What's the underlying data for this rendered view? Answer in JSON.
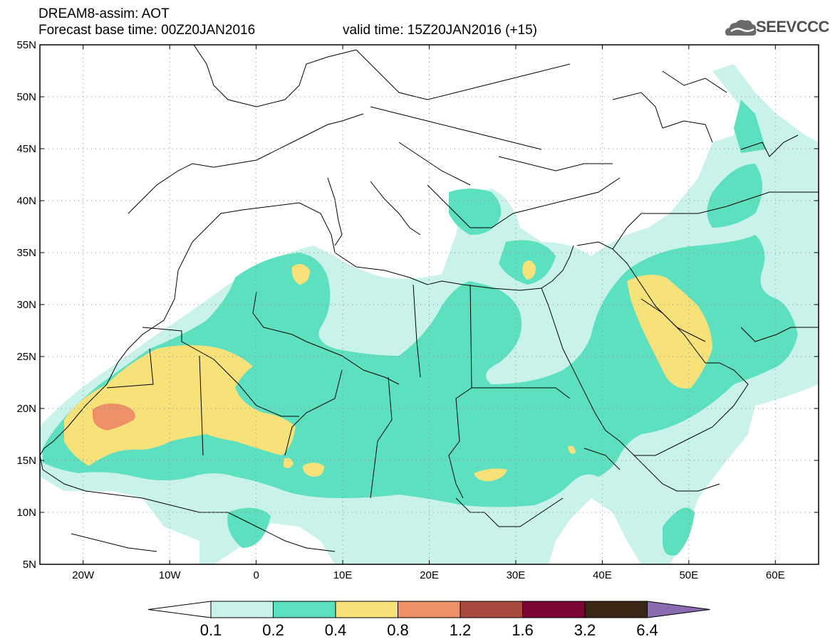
{
  "header": {
    "line1": "DREAM8-assim: AOT",
    "line2": "Forecast base time: 00Z20JAN2016",
    "line3": "valid time: 15Z20JAN2016 (+15)"
  },
  "logo": {
    "text": "SEEVCCC",
    "icon": "cloud-icon"
  },
  "map": {
    "lat_range": [
      5,
      55
    ],
    "lon_range": [
      -25,
      65
    ],
    "lat_labels": [
      "55N",
      "50N",
      "45N",
      "40N",
      "35N",
      "30N",
      "25N",
      "20N",
      "15N",
      "10N",
      "5N"
    ],
    "lat_values": [
      55,
      50,
      45,
      40,
      35,
      30,
      25,
      20,
      15,
      10,
      5
    ],
    "lon_labels": [
      "20W",
      "10W",
      "0",
      "10E",
      "20E",
      "30E",
      "40E",
      "50E",
      "60E"
    ],
    "lon_values": [
      -20,
      -10,
      0,
      10,
      20,
      30,
      40,
      50,
      60
    ],
    "grid": "dotted"
  },
  "colorbar": {
    "labels": [
      "0.1",
      "0.2",
      "0.4",
      "0.8",
      "1.2",
      "1.6",
      "3.2",
      "6.4"
    ],
    "colors": [
      "#ffffff",
      "#c8f2ea",
      "#5de0bf",
      "#f7e27a",
      "#ed9068",
      "#a84a3e",
      "#7c0535",
      "#3b2616",
      "#8a6ab0"
    ]
  }
}
